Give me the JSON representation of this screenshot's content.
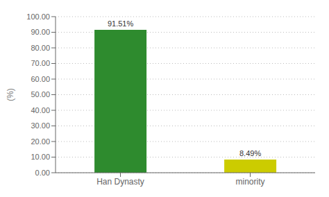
{
  "chart_data": {
    "type": "bar",
    "categories": [
      "Han Dynasty",
      "minority"
    ],
    "values": [
      91.51,
      8.49
    ],
    "value_labels": [
      "91.51%",
      "8.49%"
    ],
    "data_labels": true,
    "colors": [
      "#2e8b2e",
      "#cccc00"
    ],
    "ylabel": "(%)",
    "ylim": [
      0,
      100
    ],
    "yticks": [
      {
        "value": 0,
        "label": "0.00"
      },
      {
        "value": 10,
        "label": "10.00"
      },
      {
        "value": 20,
        "label": "20.00"
      },
      {
        "value": 30,
        "label": "30.00"
      },
      {
        "value": 40,
        "label": "40.00"
      },
      {
        "value": 50,
        "label": "50.00"
      },
      {
        "value": 60,
        "label": "60.00"
      },
      {
        "value": 70,
        "label": "70.00"
      },
      {
        "value": 80,
        "label": "80.00"
      },
      {
        "value": 90,
        "label": "90.00"
      },
      {
        "value": 100,
        "label": "100.00"
      }
    ],
    "grid": true
  }
}
